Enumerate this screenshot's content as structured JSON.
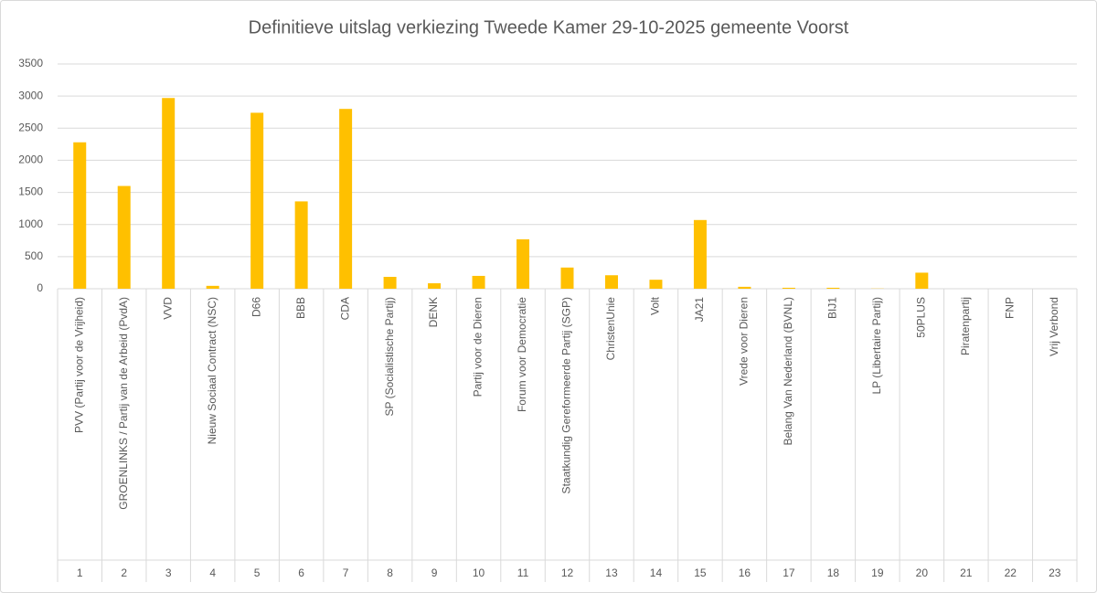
{
  "chart_data": {
    "type": "bar",
    "title": "Definitieve uitslag verkiezing Tweede Kamer 29-10-2025 gemeente Voorst",
    "categories": [
      "PVV (Partij voor de Vrijheid)",
      "GROENLINKS / Partij van de Arbeid (PvdA)",
      "VVD",
      "Nieuw Sociaal Contract (NSC)",
      "D66",
      "BBB",
      "CDA",
      "SP (Socialistische Partij)",
      "DENK",
      "Partij voor de Dieren",
      "Forum voor Democratie",
      "Staatkundig Gereformeerde Partij (SGP)",
      "ChristenUnie",
      "Volt",
      "JA21",
      "Vrede voor Dieren",
      "Belang Van Nederland (BVNL)",
      "BIJ1",
      "LP (Libertaire Partij)",
      "50PLUS",
      "Piratenpartij",
      "FNP",
      "Vrij Verbond"
    ],
    "category_numbers": [
      "1",
      "2",
      "3",
      "4",
      "5",
      "6",
      "7",
      "8",
      "9",
      "10",
      "11",
      "12",
      "13",
      "14",
      "15",
      "16",
      "17",
      "18",
      "19",
      "20",
      "21",
      "22",
      "23"
    ],
    "values": [
      2280,
      1600,
      2970,
      45,
      2740,
      1360,
      2800,
      185,
      85,
      200,
      770,
      330,
      210,
      140,
      1070,
      30,
      15,
      15,
      3,
      250,
      0,
      0,
      0
    ],
    "color": "#ffc000",
    "ylim": [
      0,
      3500
    ],
    "yticks": [
      0,
      500,
      1000,
      1500,
      2000,
      2500,
      3000,
      3500
    ],
    "grid": true
  }
}
